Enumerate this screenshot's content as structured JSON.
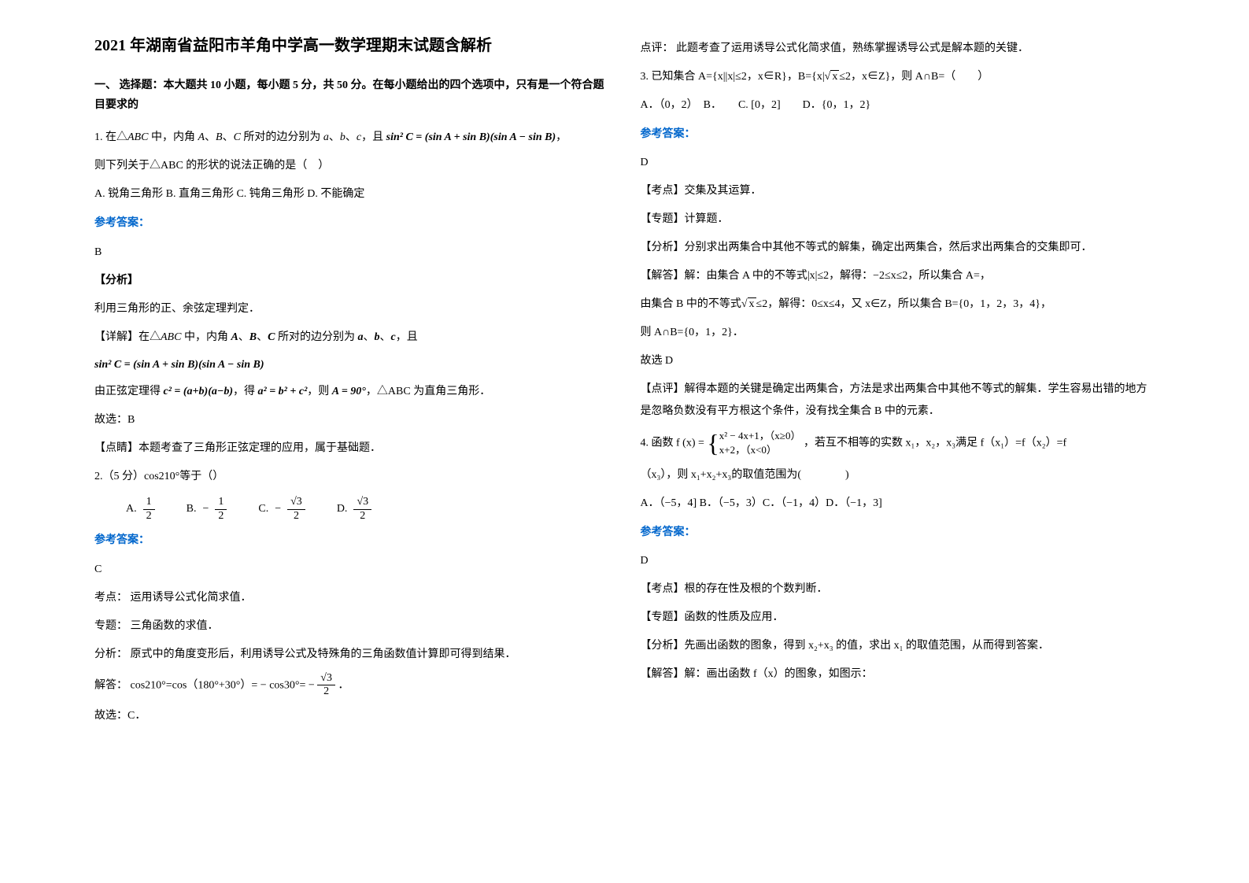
{
  "title": "2021 年湖南省益阳市羊角中学高一数学理期末试题含解析",
  "section1_heading": "一、 选择题：本大题共 10 小题，每小题 5 分，共 50 分。在每小题给出的四个选项中，只有是一个符合题目要求的",
  "q1": {
    "stem_a": "1. 在△",
    "stem_abc": "ABC",
    "stem_b": " 中，内角 ",
    "stem_c": "、",
    "stem_d": " 所对的边分别为 ",
    "stem_e": "，且 ",
    "formula": "sin² C = (sin A + sin B)(sin A − sin B)",
    "comma": "，",
    "line2": "则下列关于△ABC 的形状的说法正确的是（　）",
    "options": "A. 锐角三角形 B. 直角三角形 C. 钝角三角形 D. 不能确定",
    "answer_label": "参考答案：",
    "answer": "B",
    "analysis_label": "【分析】",
    "analysis": "利用三角形的正、余弦定理判定．",
    "detail_label": "【详解】在△",
    "detail_a": " 中，内角 ",
    "detail_b": " 所对的边分别为 ",
    "detail_c": "，且",
    "formula2": "sin² C = (sin A + sin B)(sin A − sin B)",
    "sine_text_a": "由正弦定理得 ",
    "sine_f1": "c² = (a+b)(a−b)",
    "sine_text_b": "，得 ",
    "sine_f2": "a² = b² + c²",
    "sine_text_c": "，则 ",
    "sine_f3": "A = 90°",
    "sine_text_d": "，△ABC 为直角三角形．",
    "therefore": "故选：B",
    "comment": "【点睛】本题考查了三角形正弦定理的应用，属于基础题．"
  },
  "q2": {
    "stem": "2.（5 分）cos210°等于（）",
    "optA": "A.",
    "optB": "B.",
    "optC": "C.",
    "optD": "D.",
    "valA_num": "1",
    "valA_den": "2",
    "valB_neg": "−",
    "valB_num": "1",
    "valB_den": "2",
    "valC_neg": "−",
    "valC_num": "√3",
    "valC_den": "2",
    "valD_num": "√3",
    "valD_den": "2",
    "answer_label": "参考答案：",
    "answer": "C",
    "kaodian": "考点： 运用诱导公式化简求值．",
    "zhuanti": "专题： 三角函数的求值．",
    "fenxi": "分析： 原式中的角度变形后，利用诱导公式及特殊角的三角函数值计算即可得到结果．",
    "jieda_a": "解答： cos210°=cos（180°+30°）= − cos30°= −",
    "jieda_num": "√3",
    "jieda_den": "2",
    "jieda_b": "．",
    "therefore": "故选：C．"
  },
  "right": {
    "dianping": "点评： 此题考查了运用诱导公式化简求值，熟练掌握诱导公式是解本题的关键．",
    "q3_a": "3. 已知集合 A={x||x|≤2，x∈R}，B={x|",
    "q3_b": "≤2，x∈Z}，则 A∩B=（　　）",
    "q3_options": "A．（0，2）　B．　　C. [0，2]　　D．{0，1，2}",
    "answer_label": "参考答案：",
    "q3_answer": "D",
    "q3_kaodian": "【考点】交集及其运算．",
    "q3_zhuanti": "【专题】计算题．",
    "q3_fenxi": "【分析】分别求出两集合中其他不等式的解集，确定出两集合，然后求出两集合的交集即可．",
    "q3_jieda1": "【解答】解：由集合 A 中的不等式|x|≤2，解得：−2≤x≤2，所以集合 A=，",
    "q3_jieda2_a": "由集合 B 中的不等式",
    "q3_jieda2_b": "≤2，解得：0≤x≤4，又 x∈Z，所以集合 B={0，1，2，3，4}，",
    "q3_jieda3": "则 A∩B={0，1，2}．",
    "q3_therefore": "故选 D",
    "q3_dianping": "【点评】解得本题的关键是确定出两集合，方法是求出两集合中其他不等式的解集．学生容易出错的地方是忽略负数没有平方根这个条件，没有找全集合 B 中的元素．",
    "q4_a": "4. 函数 ",
    "q4_fx": "f (x) =",
    "q4_case1": "x² − 4x+1，（x≥0）",
    "q4_case2": "x+2，（x<0）",
    "q4_b": "，若互不相等的实数 x₁，x₂，x₃满足 f（x₁）=f（x₂）=f",
    "q4_c": "（x₃），则 x₁+x₂+x₃的取值范围为(　　　　)",
    "q4_options": "A．（−5，4]  B．（−5，3）C．（−1，4）D．（−1，3]",
    "q4_answer_label": "参考答案：",
    "q4_answer": "D",
    "q4_kaodian": "【考点】根的存在性及根的个数判断．",
    "q4_zhuanti": "【专题】函数的性质及应用．",
    "q4_fenxi": "【分析】先画出函数的图象，得到 x₂+x₃ 的值，求出 x₁ 的取值范围，从而得到答案．",
    "q4_jieda": "【解答】解：画出函数 f（x）的图象，如图示："
  }
}
